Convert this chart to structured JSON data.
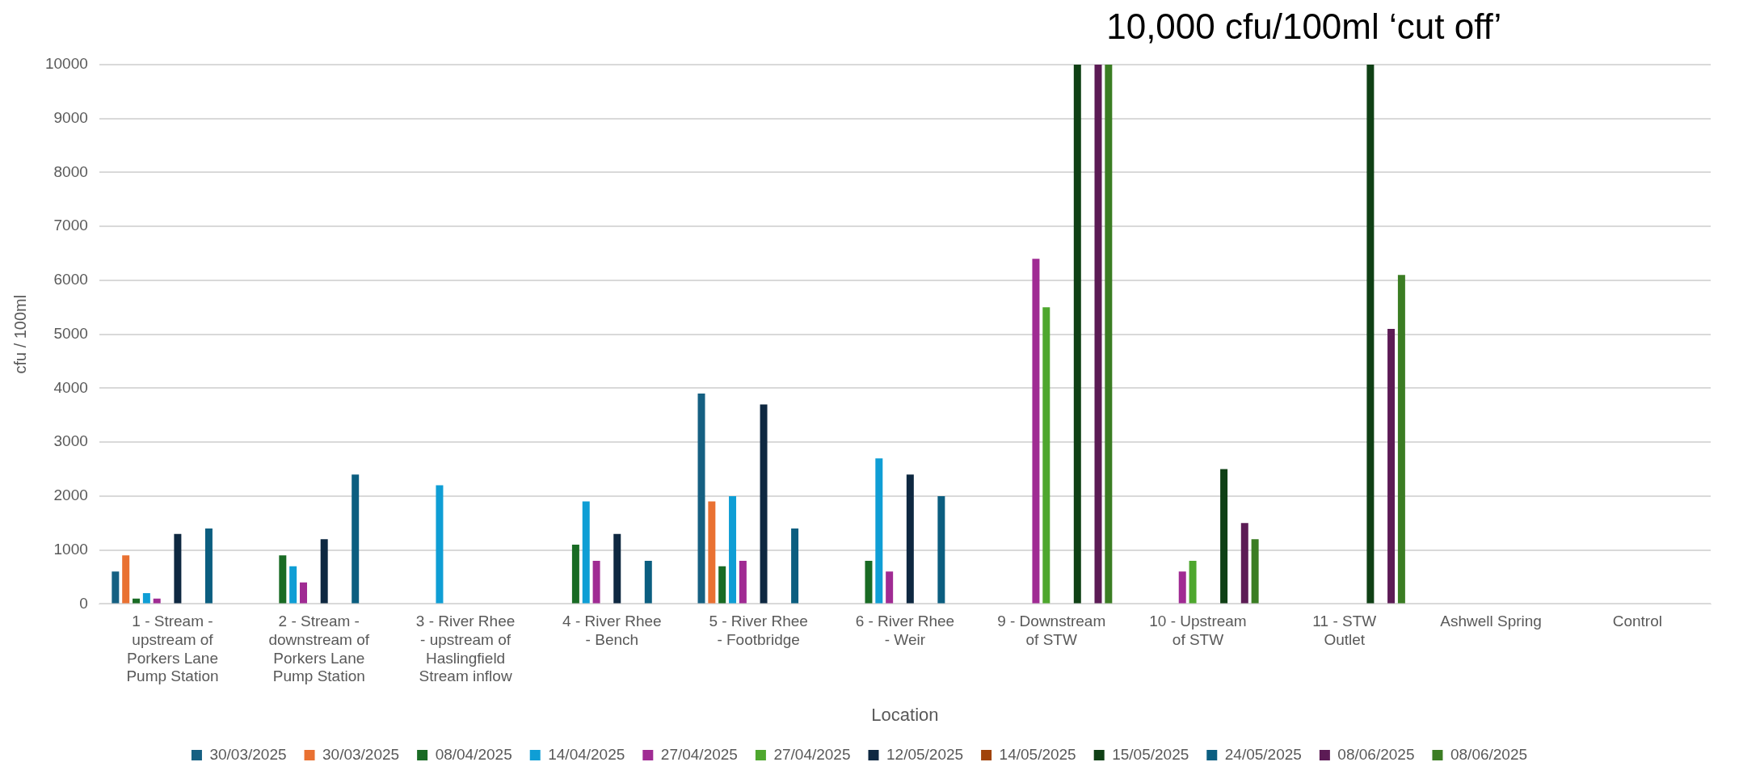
{
  "chart_data": {
    "type": "bar",
    "xlabel": "Location",
    "ylabel": "cfu / 100ml",
    "annotations": [
      "10,000 cfu/100ml ‘cut off’"
    ],
    "categories": [
      "1 - Stream - upstream of Porkers Lane Pump Station",
      "2 - Stream - downstream of Porkers Lane Pump Station",
      "3 - River Rhee - upstream of Haslingfield Stream inflow",
      "4 - River Rhee - Bench",
      "5 - River Rhee - Footbridge",
      "6 - River Rhee - Weir",
      "9 - Downstream of STW",
      "10 - Upstream of STW",
      "11 - STW Outlet",
      "Ashwell Spring",
      "Control"
    ],
    "series": [
      {
        "name": "30/03/2025",
        "color": "#156082",
        "values": [
          600,
          null,
          null,
          null,
          3900,
          null,
          null,
          null,
          null,
          null,
          null
        ]
      },
      {
        "name": "30/03/2025",
        "color": "#e97132",
        "values": [
          900,
          null,
          null,
          null,
          1900,
          null,
          null,
          null,
          null,
          null,
          null
        ]
      },
      {
        "name": "08/04/2025",
        "color": "#196b24",
        "values": [
          100,
          900,
          null,
          1100,
          700,
          800,
          null,
          null,
          null,
          null,
          null
        ]
      },
      {
        "name": "14/04/2025",
        "color": "#0f9ed5",
        "values": [
          200,
          700,
          2200,
          1900,
          2000,
          2700,
          null,
          null,
          null,
          null,
          null
        ]
      },
      {
        "name": "27/04/2025",
        "color": "#a02b93",
        "values": [
          100,
          400,
          null,
          800,
          800,
          600,
          6400,
          600,
          null,
          null,
          null
        ]
      },
      {
        "name": "27/04/2025",
        "color": "#4ea72e",
        "values": [
          null,
          null,
          null,
          null,
          null,
          null,
          5500,
          800,
          null,
          null,
          null
        ]
      },
      {
        "name": "12/05/2025",
        "color": "#0e2841",
        "values": [
          1300,
          1200,
          null,
          1300,
          3700,
          2400,
          null,
          null,
          null,
          null,
          null
        ]
      },
      {
        "name": "14/05/2025",
        "color": "#a0430a",
        "values": [
          null,
          null,
          null,
          null,
          null,
          null,
          null,
          null,
          null,
          null,
          null
        ]
      },
      {
        "name": "15/05/2025",
        "color": "#0f4015",
        "values": [
          null,
          null,
          null,
          null,
          null,
          null,
          10000,
          2500,
          10000,
          null,
          null
        ]
      },
      {
        "name": "24/05/2025",
        "color": "#0b5e80",
        "values": [
          1400,
          2400,
          null,
          800,
          1400,
          2000,
          null,
          null,
          null,
          null,
          null
        ]
      },
      {
        "name": "08/06/2025",
        "color": "#5c1b55",
        "values": [
          null,
          null,
          null,
          null,
          null,
          null,
          10000,
          1500,
          5100,
          null,
          null
        ]
      },
      {
        "name": "08/06/2025",
        "color": "#3b7d23",
        "values": [
          null,
          null,
          null,
          null,
          null,
          null,
          10000,
          1200,
          6100,
          null,
          null
        ]
      }
    ],
    "ylim": [
      0,
      10000
    ],
    "yticks": [
      0,
      1000,
      2000,
      3000,
      4000,
      5000,
      6000,
      7000,
      8000,
      9000,
      10000
    ],
    "grid": "y",
    "legend": "bottom"
  }
}
